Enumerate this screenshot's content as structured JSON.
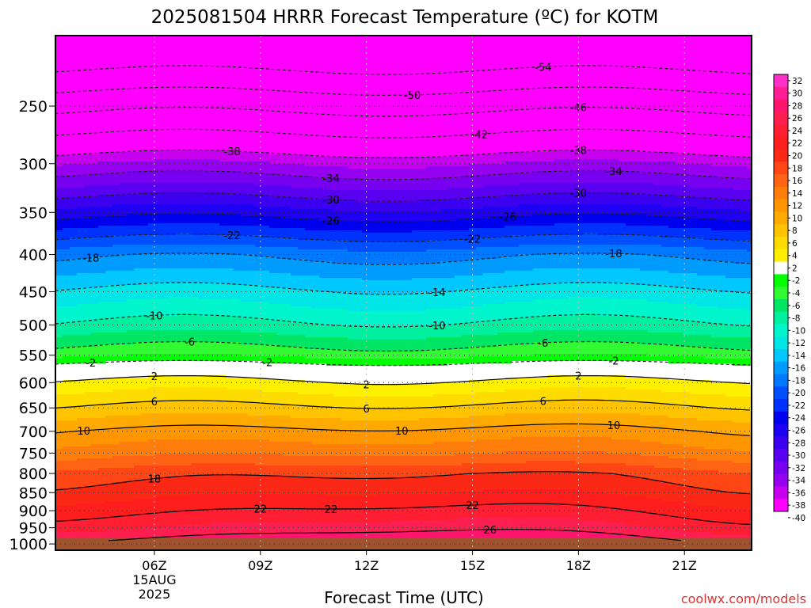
{
  "chart_data": {
    "type": "heatmap",
    "title": "2025081504 HRRR Forecast Temperature (ºC) for KOTM",
    "xlabel": "Forecast Time (UTC)",
    "ylabel": "",
    "x_range_hours_utc": [
      3.2,
      22.9
    ],
    "y_range_hpa": [
      1020,
      200
    ],
    "x_ticks": [
      {
        "hour": 6,
        "label": "06Z",
        "sub1": "15AUG",
        "sub2": "2025"
      },
      {
        "hour": 9,
        "label": "09Z"
      },
      {
        "hour": 12,
        "label": "12Z"
      },
      {
        "hour": 15,
        "label": "15Z"
      },
      {
        "hour": 18,
        "label": "18Z"
      },
      {
        "hour": 21,
        "label": "21Z"
      }
    ],
    "y_ticks": [
      250,
      300,
      350,
      400,
      450,
      500,
      550,
      600,
      650,
      700,
      750,
      800,
      850,
      900,
      950,
      1000
    ],
    "y_scale": "log",
    "grid": true,
    "colorbar": {
      "ticks": [
        "32",
        "30",
        "28",
        "26",
        "24",
        "22",
        "20",
        "18",
        "16",
        "14",
        "12",
        "10",
        "8",
        "6",
        "4",
        "2",
        "-2",
        "-4",
        "-6",
        "-8",
        "-10",
        "-12",
        "-14",
        "-16",
        "-18",
        "-20",
        "-22",
        "-24",
        "-26",
        "-28",
        "-30",
        "-32",
        "-34",
        "-36",
        "-38",
        "-40"
      ],
      "colors": [
        "#ff30c8",
        "#ff1e96",
        "#ff146e",
        "#ff1e50",
        "#ff1e32",
        "#ff1e1e",
        "#fa2814",
        "#ff4614",
        "#ff6414",
        "#ff7d0a",
        "#ff9600",
        "#ffaa00",
        "#ffc300",
        "#ffdc00",
        "#fff000",
        "#ffffff",
        "#00ff00",
        "#32fa32",
        "#00e664",
        "#00f0a0",
        "#00f5cd",
        "#00e6e6",
        "#00c8ff",
        "#009bff",
        "#0078ff",
        "#0050ff",
        "#0032ff",
        "#0000f0",
        "#1e00f5",
        "#3c00f0",
        "#5a00f0",
        "#7800f0",
        "#9600f0",
        "#c800f0",
        "#ff00ff"
      ]
    },
    "profile": [
      {
        "p": 200,
        "t": -60
      },
      {
        "p": 250,
        "t": -47
      },
      {
        "p": 300,
        "t": -36
      },
      {
        "p": 350,
        "t": -27
      },
      {
        "p": 400,
        "t": -18.5
      },
      {
        "p": 450,
        "t": -13.5
      },
      {
        "p": 500,
        "t": -9.5
      },
      {
        "p": 550,
        "t": -4.5
      },
      {
        "p": 575,
        "t": 0
      },
      {
        "p": 600,
        "t": 2.5
      },
      {
        "p": 650,
        "t": 6.5
      },
      {
        "p": 700,
        "t": 10.5
      },
      {
        "p": 750,
        "t": 13.5
      },
      {
        "p": 800,
        "t": 17.5
      },
      {
        "p": 850,
        "t": 19.5
      },
      {
        "p": 900,
        "t": 22
      },
      {
        "p": 950,
        "t": 24.5
      },
      {
        "p": 1000,
        "t": 28
      }
    ],
    "contours": [
      {
        "level": "-54",
        "label_hours": [
          17.0
        ]
      },
      {
        "level": "-50",
        "label_hours": [
          13.3
        ]
      },
      {
        "level": "-46",
        "label_hours": [
          18.0
        ]
      },
      {
        "level": "-42",
        "label_hours": [
          15.2
        ]
      },
      {
        "level": "-38",
        "label_hours": [
          8.2,
          18.0
        ]
      },
      {
        "level": "-34",
        "label_hours": [
          11.0,
          19.0
        ]
      },
      {
        "level": "-30",
        "label_hours": [
          11.0,
          18.0
        ]
      },
      {
        "level": "-26",
        "label_hours": [
          11.0,
          16.0
        ]
      },
      {
        "level": "-22",
        "label_hours": [
          8.2,
          15.0
        ]
      },
      {
        "level": "-18",
        "label_hours": [
          4.2,
          19.0
        ]
      },
      {
        "level": "-14",
        "label_hours": [
          14.0
        ]
      },
      {
        "level": "-10",
        "label_hours": [
          6.0,
          14.0
        ]
      },
      {
        "level": "-6",
        "label_hours": [
          7.0,
          17.0
        ]
      },
      {
        "level": "-2",
        "label_hours": [
          4.2,
          9.2,
          19.0
        ]
      },
      {
        "level": "2",
        "label_hours": [
          6.0,
          12.0,
          18.0
        ]
      },
      {
        "level": "6",
        "label_hours": [
          6.0,
          12.0,
          17.0
        ]
      },
      {
        "level": "10",
        "label_hours": [
          4.0,
          13.0,
          19.0
        ]
      },
      {
        "level": "18",
        "label_hours": [
          6.0
        ]
      },
      {
        "level": "22",
        "label_hours": [
          9.0,
          15.0,
          11.0
        ]
      },
      {
        "level": "26",
        "label_hours": [
          15.5
        ]
      }
    ],
    "ground": {
      "pressure_hpa": 980,
      "color": "#a0522d"
    }
  },
  "credit": "coolwx.com/models"
}
